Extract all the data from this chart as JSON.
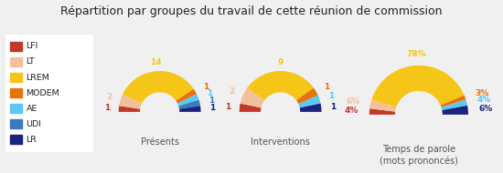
{
  "title": "Répartition par groupes du travail de cette réunion de commission",
  "groups": [
    "LFI",
    "LT",
    "LREM",
    "MODEM",
    "AE",
    "UDI",
    "LR"
  ],
  "colors": [
    "#c0392b",
    "#f4c09a",
    "#f5c518",
    "#e8730a",
    "#5bc8f5",
    "#3a7abf",
    "#1a237e"
  ],
  "presents": [
    1,
    2,
    14,
    1,
    1,
    1,
    1
  ],
  "interventions": [
    1,
    2,
    9,
    1,
    1,
    0,
    1
  ],
  "temps_parole": [
    4,
    6,
    78,
    3,
    4,
    0,
    6
  ],
  "labels_presentes": [
    "1",
    "2",
    "14",
    "1",
    "1",
    "1",
    "1"
  ],
  "labels_interventions": [
    "1",
    "2",
    "9",
    "1",
    "1",
    "",
    "1"
  ],
  "labels_temps": [
    "4%",
    "6%",
    "78%",
    "3%",
    "4%",
    "",
    "6%"
  ],
  "chart_titles": [
    "Présents",
    "Interventions",
    "Temps de parole\n(mots prononcés)"
  ],
  "bg_color": "#f0f0f0",
  "legend_bg": "#ffffff",
  "border_color": "#cccccc"
}
